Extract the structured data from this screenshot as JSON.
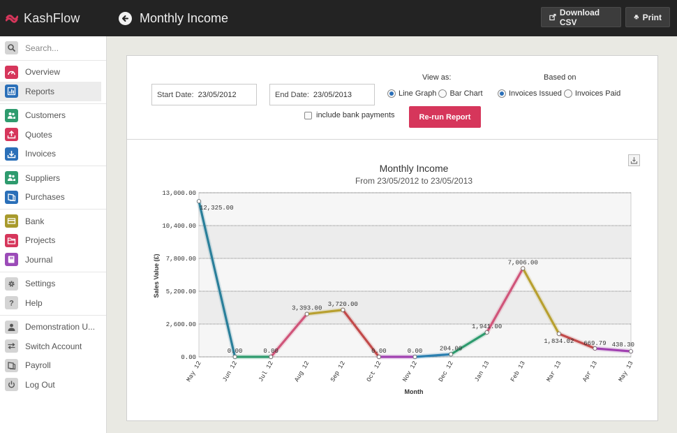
{
  "app": {
    "name": "KashFlow"
  },
  "header": {
    "title": "Monthly Income",
    "download_label": "Download CSV",
    "print_label": "Print"
  },
  "sidebar": {
    "search_placeholder": "Search...",
    "items": [
      {
        "id": "overview",
        "label": "Overview",
        "color": "#d6365b",
        "icon": "gauge-icon"
      },
      {
        "id": "reports",
        "label": "Reports",
        "color": "#2a6fb8",
        "icon": "chart-icon",
        "active": true
      },
      {
        "id": "customers",
        "label": "Customers",
        "color": "#2e9b6e",
        "icon": "users-icon"
      },
      {
        "id": "quotes",
        "label": "Quotes",
        "color": "#d6365b",
        "icon": "quote-icon"
      },
      {
        "id": "invoices",
        "label": "Invoices",
        "color": "#2a6fb8",
        "icon": "invoice-icon"
      },
      {
        "id": "suppliers",
        "label": "Suppliers",
        "color": "#2e9b6e",
        "icon": "suppliers-icon"
      },
      {
        "id": "purchases",
        "label": "Purchases",
        "color": "#2a6fb8",
        "icon": "purchases-icon"
      },
      {
        "id": "bank",
        "label": "Bank",
        "color": "#a89a2c",
        "icon": "bank-icon"
      },
      {
        "id": "projects",
        "label": "Projects",
        "color": "#d6365b",
        "icon": "folder-icon"
      },
      {
        "id": "journal",
        "label": "Journal",
        "color": "#9b4bb8",
        "icon": "journal-icon"
      },
      {
        "id": "settings",
        "label": "Settings",
        "color": "#bdbdbd",
        "icon": "gear-icon"
      },
      {
        "id": "help",
        "label": "Help",
        "color": "#bdbdbd",
        "icon": "help-icon"
      },
      {
        "id": "demo-user",
        "label": "Demonstration U...",
        "color": "#bdbdbd",
        "icon": "user-icon"
      },
      {
        "id": "switch-account",
        "label": "Switch Account",
        "color": "#bdbdbd",
        "icon": "switch-icon"
      },
      {
        "id": "payroll",
        "label": "Payroll",
        "color": "#bdbdbd",
        "icon": "payroll-icon"
      },
      {
        "id": "logout",
        "label": "Log Out",
        "color": "#bdbdbd",
        "icon": "power-icon"
      }
    ]
  },
  "controls": {
    "start_label": "Start Date:",
    "start_value": "23/05/2012",
    "end_label": "End Date:",
    "end_value": "23/05/2013",
    "view_as_label": "View as:",
    "view_options": [
      {
        "label": "Line Graph",
        "selected": true
      },
      {
        "label": "Bar Chart",
        "selected": false
      }
    ],
    "based_on_label": "Based on",
    "based_options": [
      {
        "label": "Invoices Issued",
        "selected": true
      },
      {
        "label": "Invoices Paid",
        "selected": false
      }
    ],
    "bank_label": "include bank payments",
    "bank_checked": false,
    "rerun_label": "Re-run Report"
  },
  "chart_data": {
    "type": "line",
    "title": "Monthly Income",
    "subtitle": "From 23/05/2012 to 23/05/2013",
    "xlabel": "Month",
    "ylabel": "Sales Value (£)",
    "ylim": [
      0,
      13000
    ],
    "yticks": [
      0,
      2600,
      5200,
      7800,
      10400,
      13000
    ],
    "ytick_labels": [
      "0.00",
      "2,600.00",
      "5,200.00",
      "7,800.00",
      "10,400.00",
      "13,000.00"
    ],
    "categories": [
      "May 12",
      "Jun 12",
      "Jul 12",
      "Aug 12",
      "Sep 12",
      "Oct 12",
      "Nov 12",
      "Dec 12",
      "Jan 13",
      "Feb 13",
      "Mar 13",
      "Apr 13",
      "May 13"
    ],
    "values": [
      12325,
      0,
      0,
      3393,
      3720,
      0,
      0,
      204,
      1941,
      7006,
      1834.02,
      669.79,
      438.3
    ],
    "value_labels": [
      "12,325.00",
      "0.00",
      "0.00",
      "3,393.00",
      "3,720.00",
      "0.00",
      "0.00",
      "204.00",
      "1,941.00",
      "7,006.00",
      "1,834.02",
      "669.79",
      "438.30"
    ],
    "segment_colors": [
      "#2a7f9a",
      "#2e9b6e",
      "#d0557a",
      "#b8a030",
      "#c24a4a",
      "#a040b0",
      "#2a7fb0",
      "#2e9b6e",
      "#d0557a",
      "#b8a030",
      "#c24a4a",
      "#a040b0"
    ],
    "grid": true
  }
}
